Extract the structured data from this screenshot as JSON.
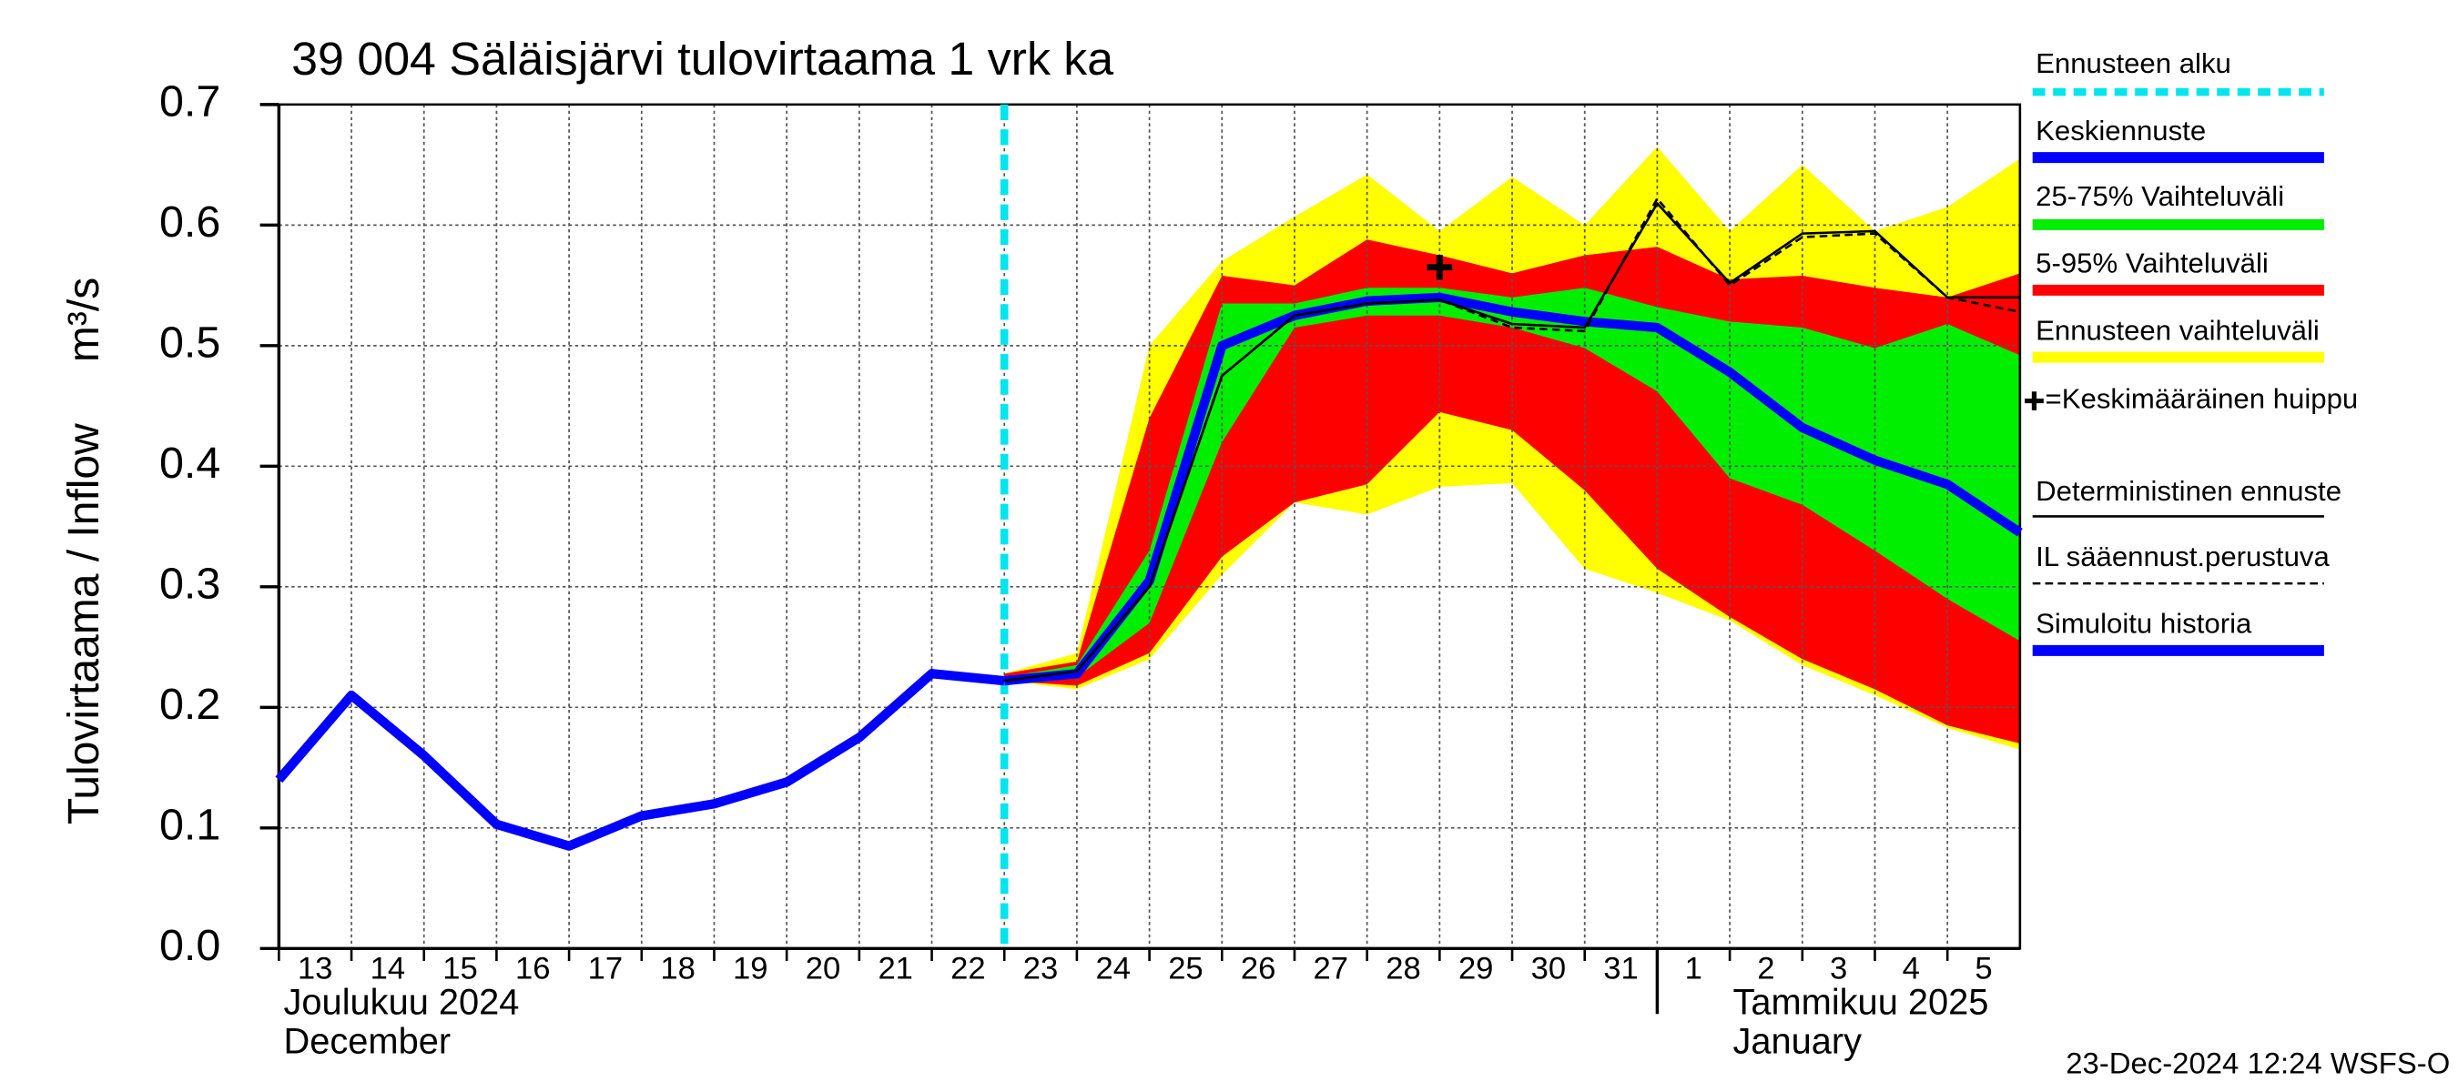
{
  "chart_data": {
    "type": "line",
    "title": "39 004 Säläisjärvi tulovirtaama 1 vrk ka",
    "y_label": "Tulovirtaama / Inflow",
    "y_unit": "m³/s",
    "month_labels": [
      {
        "x": 0,
        "lines": [
          "Joulukuu  2024",
          "December"
        ]
      },
      {
        "x": 19,
        "lines": [
          "Tammikuu  2025",
          "January"
        ]
      }
    ],
    "timestamp": "23-Dec-2024 12:24 WSFS-O",
    "xlim": [
      0,
      24
    ],
    "ylim": [
      0,
      0.7
    ],
    "grid": true,
    "xticks": [
      {
        "value": 0,
        "label": "13"
      },
      {
        "value": 1,
        "label": "14"
      },
      {
        "value": 2,
        "label": "15"
      },
      {
        "value": 3,
        "label": "16"
      },
      {
        "value": 4,
        "label": "17"
      },
      {
        "value": 5,
        "label": "18"
      },
      {
        "value": 6,
        "label": "19"
      },
      {
        "value": 7,
        "label": "20"
      },
      {
        "value": 8,
        "label": "21"
      },
      {
        "value": 9,
        "label": "22"
      },
      {
        "value": 10,
        "label": "23"
      },
      {
        "value": 11,
        "label": "24"
      },
      {
        "value": 12,
        "label": "25"
      },
      {
        "value": 13,
        "label": "26"
      },
      {
        "value": 14,
        "label": "27"
      },
      {
        "value": 15,
        "label": "28"
      },
      {
        "value": 16,
        "label": "29"
      },
      {
        "value": 17,
        "label": "30"
      },
      {
        "value": 18,
        "label": "31"
      },
      {
        "value": 19,
        "label": "1"
      },
      {
        "value": 20,
        "label": "2"
      },
      {
        "value": 21,
        "label": "3"
      },
      {
        "value": 22,
        "label": "4"
      },
      {
        "value": 23,
        "label": "5"
      }
    ],
    "yticks": [
      {
        "value": 0,
        "label": "0.0"
      },
      0.1,
      0.2,
      0.3,
      0.4,
      0.5,
      0.6,
      0.7
    ],
    "forecast_start": {
      "name": "Ennusteen alku",
      "x": 10,
      "color": "#00e5ee"
    },
    "bands": [
      {
        "name": "Ennusteen vaihteluväli",
        "color": "#ffff00",
        "x": [
          10,
          11,
          12,
          13,
          14,
          15,
          16,
          17,
          18,
          19,
          20,
          21,
          22,
          23,
          24
        ],
        "low": [
          0.222,
          0.215,
          0.24,
          0.31,
          0.37,
          0.36,
          0.383,
          0.386,
          0.315,
          0.295,
          0.272,
          0.235,
          0.21,
          0.183,
          0.165
        ],
        "high": [
          0.228,
          0.245,
          0.5,
          0.57,
          0.607,
          0.642,
          0.595,
          0.64,
          0.6,
          0.665,
          0.595,
          0.65,
          0.595,
          0.615,
          0.655
        ]
      },
      {
        "name": "5-95% Vaihteluväli",
        "color": "#ff0000",
        "x": [
          10,
          11,
          12,
          13,
          14,
          15,
          16,
          17,
          18,
          19,
          20,
          21,
          22,
          23,
          24
        ],
        "low": [
          0.222,
          0.218,
          0.245,
          0.325,
          0.37,
          0.385,
          0.445,
          0.43,
          0.38,
          0.315,
          0.275,
          0.24,
          0.215,
          0.185,
          0.17
        ],
        "high": [
          0.228,
          0.238,
          0.44,
          0.558,
          0.55,
          0.588,
          0.575,
          0.56,
          0.575,
          0.582,
          0.555,
          0.558,
          0.548,
          0.54,
          0.56
        ]
      },
      {
        "name": "25-75% Vaihteluväli",
        "color": "#00ee00",
        "x": [
          10,
          11,
          12,
          13,
          14,
          15,
          16,
          17,
          18,
          19,
          20,
          21,
          22,
          23,
          24
        ],
        "low": [
          0.222,
          0.225,
          0.27,
          0.42,
          0.515,
          0.525,
          0.525,
          0.515,
          0.498,
          0.462,
          0.39,
          0.368,
          0.33,
          0.29,
          0.255
        ],
        "high": [
          0.225,
          0.235,
          0.33,
          0.535,
          0.535,
          0.548,
          0.548,
          0.54,
          0.548,
          0.532,
          0.52,
          0.515,
          0.498,
          0.518,
          0.492
        ]
      }
    ],
    "series": [
      {
        "name": "Simuloitu historia",
        "color": "#0000ff",
        "style": "thick",
        "x": [
          0,
          1,
          2,
          3,
          4,
          5,
          6,
          7,
          8,
          9,
          10
        ],
        "values": [
          0.14,
          0.21,
          0.16,
          0.103,
          0.085,
          0.11,
          0.12,
          0.138,
          0.175,
          0.228,
          0.222
        ]
      },
      {
        "name": "Keskiennuste",
        "color": "#0000ff",
        "style": "thick",
        "x": [
          10,
          11,
          12,
          13,
          14,
          15,
          16,
          17,
          18,
          19,
          20,
          21,
          22,
          23,
          24
        ],
        "values": [
          0.222,
          0.228,
          0.305,
          0.5,
          0.525,
          0.537,
          0.54,
          0.528,
          0.52,
          0.515,
          0.478,
          0.432,
          0.405,
          0.385,
          0.345
        ]
      },
      {
        "name": "Deterministinen ennuste",
        "color": "#000000",
        "style": "thin",
        "x": [
          10,
          11,
          12,
          13,
          14,
          15,
          16,
          17,
          18,
          19,
          20,
          21,
          22,
          23,
          24
        ],
        "values": [
          0.222,
          0.23,
          0.3,
          0.475,
          0.525,
          0.535,
          0.538,
          0.518,
          0.515,
          0.618,
          0.552,
          0.593,
          0.595,
          0.54,
          0.54
        ]
      },
      {
        "name": "IL sääennust.perustuva",
        "color": "#000000",
        "style": "dashed",
        "x": [
          10,
          11,
          12,
          13,
          14,
          15,
          16,
          17,
          18,
          19,
          20,
          21,
          22,
          23,
          24
        ],
        "values": [
          0.222,
          0.23,
          0.3,
          0.475,
          0.525,
          0.535,
          0.538,
          0.515,
          0.512,
          0.622,
          0.55,
          0.59,
          0.593,
          0.54,
          0.528
        ]
      }
    ],
    "peak": {
      "name": "=Keskimääräinen huippu",
      "x": 16,
      "value": 0.565,
      "color": "#000000"
    }
  }
}
